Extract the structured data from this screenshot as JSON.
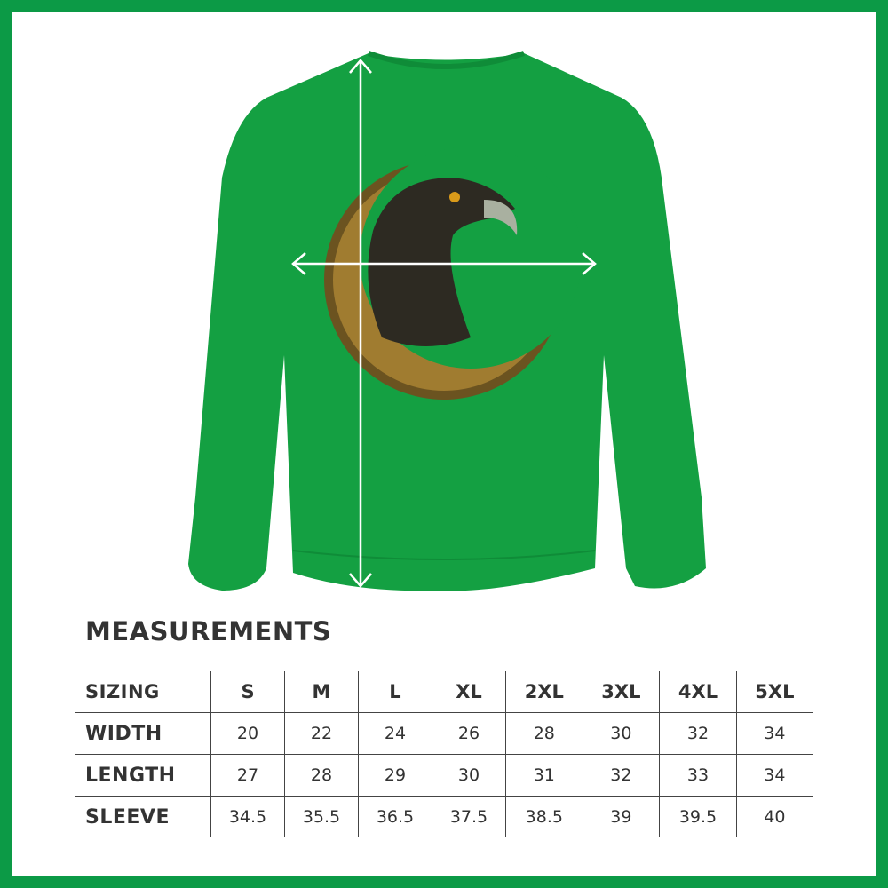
{
  "product": {
    "color": "#14a042",
    "border_color": "#0c9a46",
    "artwork": "eagle-on-celtic-crescent-moon"
  },
  "measurements": {
    "title": "MEASUREMENTS",
    "header": {
      "label": "SIZING",
      "sizes": [
        "S",
        "M",
        "L",
        "XL",
        "2XL",
        "3XL",
        "4XL",
        "5XL"
      ]
    },
    "rows": [
      {
        "label": "WIDTH",
        "values": [
          "20",
          "22",
          "24",
          "26",
          "28",
          "30",
          "32",
          "34"
        ]
      },
      {
        "label": "LENGTH",
        "values": [
          "27",
          "28",
          "29",
          "30",
          "31",
          "32",
          "33",
          "34"
        ]
      },
      {
        "label": "SLEEVE",
        "values": [
          "34.5",
          "35.5",
          "36.5",
          "37.5",
          "38.5",
          "39",
          "39.5",
          "40"
        ]
      }
    ]
  }
}
